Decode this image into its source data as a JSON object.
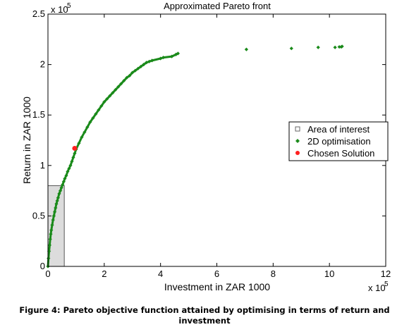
{
  "chart_data": {
    "type": "scatter",
    "title": "Approximated Pareto front",
    "xlabel": "Investment in ZAR 1000",
    "ylabel": "Return in ZAR 1000",
    "x_exponent_label": "x 10",
    "x_exponent_power": "5",
    "y_exponent_label": "x 10",
    "y_exponent_power": "5",
    "xlim": [
      0,
      1200000
    ],
    "ylim": [
      0,
      250000
    ],
    "x_ticks": [
      0,
      200000,
      400000,
      600000,
      800000,
      1000000,
      1200000
    ],
    "x_tick_labels": [
      "0",
      "2",
      "4",
      "6",
      "8",
      "10",
      "12"
    ],
    "y_ticks": [
      0,
      50000,
      100000,
      150000,
      200000,
      250000
    ],
    "y_tick_labels": [
      "0",
      "0.5",
      "1",
      "1.5",
      "2",
      "2.5"
    ],
    "grid": false,
    "legend_position": "right",
    "legend": [
      {
        "label": "Area of interest",
        "marker": "square",
        "color": "#666666"
      },
      {
        "label": "2D optimisation",
        "marker": "diamond",
        "color": "#1a8a1a"
      },
      {
        "label": "Chosen Solution",
        "marker": "circle",
        "color": "#ff2020"
      }
    ],
    "area_of_interest": {
      "x": [
        0,
        58000
      ],
      "y": [
        0,
        80000
      ],
      "color": "#dcdcdc"
    },
    "series": [
      {
        "name": "2D optimisation",
        "color": "#1a8a1a",
        "points": [
          [
            0,
            0
          ],
          [
            2000,
            8000
          ],
          [
            4000,
            15000
          ],
          [
            6000,
            21000
          ],
          [
            8000,
            27000
          ],
          [
            10000,
            32000
          ],
          [
            12000,
            36000
          ],
          [
            15000,
            41000
          ],
          [
            18000,
            46000
          ],
          [
            21000,
            50000
          ],
          [
            24000,
            54000
          ],
          [
            27000,
            58000
          ],
          [
            30000,
            62000
          ],
          [
            33000,
            65000
          ],
          [
            36000,
            68000
          ],
          [
            40000,
            72000
          ],
          [
            44000,
            75000
          ],
          [
            48000,
            78000
          ],
          [
            52000,
            81000
          ],
          [
            56000,
            84000
          ],
          [
            60000,
            87000
          ],
          [
            65000,
            90000
          ],
          [
            70000,
            94000
          ],
          [
            75000,
            97000
          ],
          [
            80000,
            100000
          ],
          [
            85000,
            104000
          ],
          [
            90000,
            108000
          ],
          [
            95000,
            112000
          ],
          [
            100000,
            116000
          ],
          [
            110000,
            122000
          ],
          [
            120000,
            128000
          ],
          [
            130000,
            133000
          ],
          [
            140000,
            138000
          ],
          [
            150000,
            143000
          ],
          [
            160000,
            147000
          ],
          [
            170000,
            151000
          ],
          [
            180000,
            155000
          ],
          [
            190000,
            159000
          ],
          [
            200000,
            163000
          ],
          [
            210000,
            166000
          ],
          [
            220000,
            169000
          ],
          [
            230000,
            172000
          ],
          [
            240000,
            175000
          ],
          [
            250000,
            178000
          ],
          [
            260000,
            181000
          ],
          [
            270000,
            184000
          ],
          [
            280000,
            187000
          ],
          [
            290000,
            189000
          ],
          [
            300000,
            192000
          ],
          [
            310000,
            194000
          ],
          [
            320000,
            196000
          ],
          [
            330000,
            198000
          ],
          [
            340000,
            200000
          ],
          [
            350000,
            202000
          ],
          [
            360000,
            203000
          ],
          [
            370000,
            204000
          ],
          [
            400000,
            206000
          ],
          [
            410000,
            207000
          ],
          [
            440000,
            208000
          ],
          [
            455000,
            210000
          ],
          [
            462000,
            211000
          ],
          [
            705000,
            215000
          ],
          [
            865000,
            216000
          ],
          [
            960000,
            217000
          ],
          [
            1020000,
            217000
          ],
          [
            1035000,
            217500
          ],
          [
            1042000,
            217500
          ],
          [
            1045000,
            218000
          ]
        ]
      },
      {
        "name": "Chosen Solution",
        "color": "#ff2020",
        "points": [
          [
            95000,
            117000
          ]
        ]
      }
    ]
  },
  "caption": {
    "line1": "Figure 4: Pareto objective function attained by optimising in terms of return and",
    "line2": "investment"
  }
}
